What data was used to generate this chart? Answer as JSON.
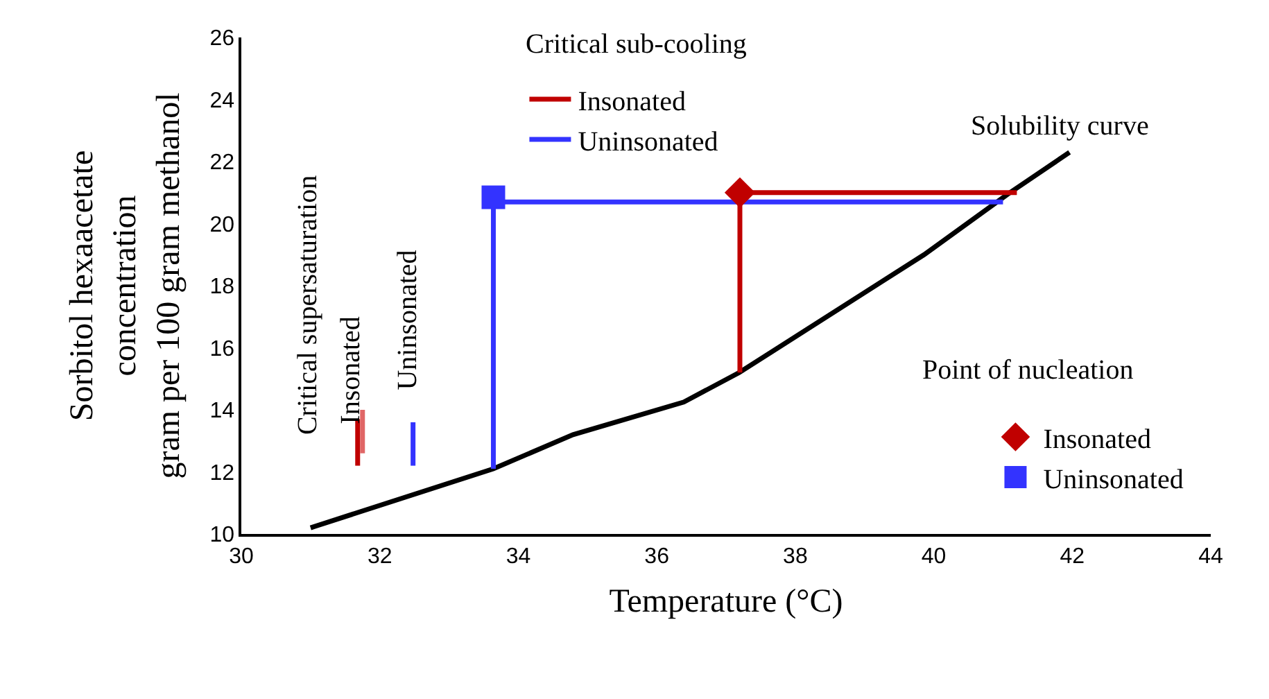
{
  "chart_data": {
    "type": "line",
    "xlabel": "Temperature (°C)",
    "ylabel": "Sorbitol hexaacetate\nconcentration\ngram per 100 gram methanol",
    "xlim": [
      30,
      44
    ],
    "xticks": [
      30,
      32,
      34,
      36,
      38,
      40,
      42,
      44
    ],
    "ylim": [
      10,
      26
    ],
    "yticks": [
      10,
      12,
      14,
      16,
      18,
      20,
      22,
      24,
      26
    ],
    "legend": "right",
    "annotations": [
      "Critical sub-cooling",
      "Point of nucleation",
      "Solubility curve",
      "Critical supersaturation",
      "Insonated",
      "Uninsonated"
    ],
    "series": [
      {
        "color": "#000000",
        "marker": "none",
        "x": [
          31.0,
          33.64,
          34.79,
          36.39,
          37.19,
          39.86,
          41.07,
          41.96
        ],
        "values": [
          10.2,
          12.1,
          13.2,
          14.25,
          15.2,
          19.0,
          20.95,
          22.3
        ]
      },
      {
        "name": "Insonated",
        "color": "#c00000",
        "marker": "none",
        "x": [
          37.2,
          37.2,
          41.2
        ],
        "values": [
          15.2,
          21.0,
          21.0
        ]
      },
      {
        "name": "Uninsonated",
        "color": "#3333ff",
        "marker": "none",
        "x": [
          33.64,
          33.64,
          41.0
        ],
        "values": [
          12.1,
          20.7,
          20.7
        ]
      },
      {
        "type": "scatter",
        "name": "Insonated",
        "color": "#c00000",
        "marker": "diamond",
        "x": [
          37.2
        ],
        "values": [
          21.0
        ]
      },
      {
        "type": "scatter",
        "name": "Uninsonated",
        "color": "#3333ff",
        "marker": "square",
        "x": [
          33.64
        ],
        "values": [
          20.85
        ]
      },
      {
        "color": "#c00000",
        "marker": "none",
        "x": [
          31.68,
          31.68
        ],
        "values": [
          12.2,
          13.7
        ]
      },
      {
        "color": "#e06666",
        "marker": "none",
        "x": [
          31.75,
          31.75
        ],
        "values": [
          12.6,
          14.0
        ]
      },
      {
        "color": "#3333ff",
        "marker": "none",
        "x": [
          32.48,
          32.48
        ],
        "values": [
          12.2,
          13.6
        ]
      }
    ]
  }
}
